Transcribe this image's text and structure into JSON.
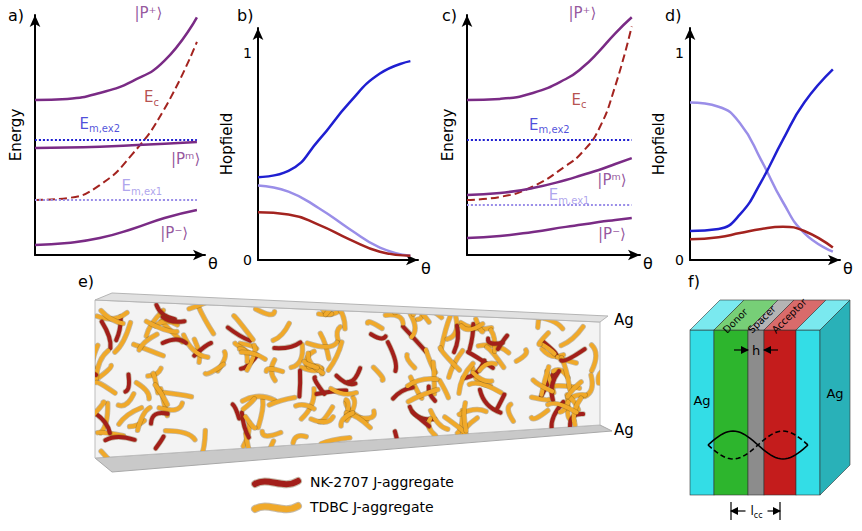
{
  "chart_data": [
    {
      "type": "line",
      "title": "a)",
      "x_label": "θ",
      "y_label": "Energy",
      "xlim": [
        0,
        1.05
      ],
      "ylim": [
        0,
        10.5
      ],
      "xticks": [],
      "yticks": [],
      "tick_labels": false,
      "grid": false,
      "x": [
        0,
        0.2,
        0.4,
        0.6,
        0.8,
        1.0
      ],
      "series": [
        {
          "color": "#7a2b85",
          "line_style": "solid",
          "values": [
            6.78,
            6.83,
            7.09,
            7.6,
            8.5,
            10.4
          ]
        },
        {
          "color": "#a3231f",
          "line_style": "dashed",
          "values": [
            2.41,
            2.49,
            3.06,
            4.4,
            6.4,
            9.32
          ]
        },
        {
          "color": "#1f1fd1",
          "line_style": "dotted",
          "values": [
            5.03,
            5.03,
            5.03,
            5.03,
            5.03,
            5.03
          ]
        },
        {
          "color": "#7a2b85",
          "line_style": "solid",
          "values": [
            4.68,
            4.7,
            4.74,
            4.8,
            4.87,
            4.94
          ]
        },
        {
          "color": "#9a8ee8",
          "line_style": "dotted",
          "values": [
            2.41,
            2.41,
            2.41,
            2.41,
            2.41,
            2.41
          ]
        },
        {
          "color": "#7a2b85",
          "line_style": "solid",
          "values": [
            0.44,
            0.53,
            0.74,
            1.14,
            1.62,
            1.97
          ]
        }
      ],
      "annotations": [
        {
          "text": "|P⁺⟩",
          "x": 0.7,
          "y": 10.6,
          "color": "#7a2b85"
        },
        {
          "text": "E",
          "subscript": "c",
          "x": 0.72,
          "y": 6.9,
          "color": "#a3231f"
        },
        {
          "text": "E",
          "subscript": "m,ex2",
          "x": 0.4,
          "y": 5.75,
          "color": "#1f1fd1"
        },
        {
          "text": "|Pᵐ⟩",
          "x": 0.93,
          "y": 4.2,
          "color": "#7a2b85"
        },
        {
          "text": "E",
          "subscript": "m,ex1",
          "x": 0.66,
          "y": 3.0,
          "color": "#9a8ee8"
        },
        {
          "text": "|P⁻⟩",
          "x": 0.86,
          "y": 0.95,
          "color": "#7a2b85"
        }
      ]
    },
    {
      "type": "line",
      "title": "b)",
      "x_label": "θ",
      "y_label": "Hopfield",
      "xlim": [
        0,
        1.05
      ],
      "ylim": [
        0,
        1.12
      ],
      "xticks": [],
      "yticks": [
        0,
        1
      ],
      "tick_labels": "y",
      "grid": false,
      "x": [
        0,
        0.2,
        0.4,
        0.6,
        0.8,
        1.0
      ],
      "series": [
        {
          "color": "#1f1fd1",
          "line_style": "solid",
          "values": [
            0.4,
            0.43,
            0.58,
            0.76,
            0.9,
            0.96
          ]
        },
        {
          "color": "#9a8ee8",
          "line_style": "solid",
          "values": [
            0.36,
            0.33,
            0.25,
            0.15,
            0.06,
            0.02
          ]
        },
        {
          "color": "#a3231f",
          "line_style": "solid",
          "values": [
            0.23,
            0.22,
            0.17,
            0.1,
            0.04,
            0.02
          ]
        }
      ]
    },
    {
      "type": "line",
      "title": "c)",
      "x_label": "θ",
      "y_label": "Energy",
      "xlim": [
        0,
        1.05
      ],
      "ylim": [
        0,
        10.5
      ],
      "xticks": [],
      "yticks": [],
      "tick_labels": false,
      "grid": false,
      "x": [
        0,
        0.2,
        0.4,
        0.6,
        0.7,
        0.8,
        0.9,
        1.0
      ],
      "series": [
        {
          "color": "#7a2b85",
          "line_style": "solid",
          "values": [
            6.78,
            6.83,
            7.09,
            7.7,
            8.2,
            8.9,
            9.7,
            10.4
          ]
        },
        {
          "color": "#a3231f",
          "line_style": "dashed",
          "values": [
            2.41,
            2.54,
            3.0,
            3.9,
            4.5,
            5.5,
            7.4,
            10.0
          ]
        },
        {
          "color": "#1f1fd1",
          "line_style": "dotted",
          "values": [
            5.03,
            5.03,
            5.03,
            5.03,
            5.03,
            5.03,
            5.03,
            5.03
          ]
        },
        {
          "color": "#7a2b85",
          "line_style": "solid",
          "values": [
            2.63,
            2.71,
            2.93,
            3.28,
            3.5,
            3.72,
            3.98,
            4.24
          ]
        },
        {
          "color": "#9a8ee8",
          "line_style": "dotted",
          "values": [
            2.19,
            2.19,
            2.19,
            2.19,
            2.19,
            2.19,
            2.19,
            2.19
          ]
        },
        {
          "color": "#7a2b85",
          "line_style": "solid",
          "values": [
            0.74,
            0.83,
            1.01,
            1.23,
            1.33,
            1.44,
            1.53,
            1.62
          ]
        }
      ],
      "annotations": [
        {
          "text": "|P⁺⟩",
          "x": 0.7,
          "y": 10.6,
          "color": "#7a2b85"
        },
        {
          "text": "E",
          "subscript": "c",
          "x": 0.68,
          "y": 6.8,
          "color": "#a3231f"
        },
        {
          "text": "E",
          "subscript": "m,ex2",
          "x": 0.5,
          "y": 5.7,
          "color": "#1f1fd1"
        },
        {
          "text": "|Pᵐ⟩",
          "x": 0.88,
          "y": 3.3,
          "color": "#7a2b85"
        },
        {
          "text": "E",
          "subscript": "m,ex1",
          "x": 0.62,
          "y": 2.62,
          "color": "#9a8ee8"
        },
        {
          "text": "|P⁻⟩",
          "x": 0.88,
          "y": 0.9,
          "color": "#7a2b85"
        }
      ]
    },
    {
      "type": "line",
      "title": "d)",
      "x_label": "θ",
      "y_label": "Hopfield",
      "xlim": [
        0,
        1.05
      ],
      "ylim": [
        0,
        1.12
      ],
      "xticks": [],
      "yticks": [
        0,
        1
      ],
      "tick_labels": "y",
      "grid": false,
      "x": [
        0,
        0.2,
        0.35,
        0.5,
        0.65,
        0.8,
        1.0
      ],
      "series": [
        {
          "color": "#9a8ee8",
          "line_style": "solid",
          "values": [
            0.76,
            0.74,
            0.66,
            0.48,
            0.28,
            0.13,
            0.04
          ]
        },
        {
          "color": "#1f1fd1",
          "line_style": "solid",
          "values": [
            0.14,
            0.15,
            0.22,
            0.38,
            0.58,
            0.76,
            0.92
          ]
        },
        {
          "color": "#a3231f",
          "line_style": "solid",
          "values": [
            0.1,
            0.11,
            0.13,
            0.15,
            0.16,
            0.14,
            0.06
          ]
        }
      ]
    }
  ],
  "illustrations": {
    "e": {
      "label": "e)",
      "electrodes": [
        "Ag",
        "Ag"
      ],
      "legend": [
        {
          "text": "NK-2707 J-aggregate",
          "color": "#a31f1a"
        },
        {
          "text": "TDBC J-aggregate",
          "color": "#f0a92a"
        }
      ]
    },
    "f": {
      "label": "f)",
      "layers": [
        {
          "text": "Ag",
          "color": "#33dde6"
        },
        {
          "text": "Donor",
          "color": "#2db52d"
        },
        {
          "text": "Spacer",
          "color": "#8c8c8c"
        },
        {
          "text": "Acceptor",
          "color": "#c41c1c"
        },
        {
          "text": "Ag",
          "color": "#33dde6"
        }
      ],
      "spacer_label": "h",
      "distance_label": {
        "text": "l",
        "subscript": "cc"
      }
    }
  }
}
